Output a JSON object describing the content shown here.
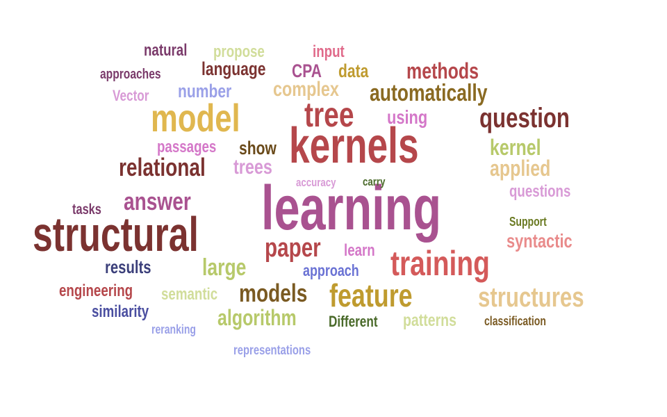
{
  "words": [
    {
      "text": "kernels",
      "color": "#b5474b"
    },
    {
      "text": "learning",
      "color": "#a95290"
    },
    {
      "text": "structural",
      "color": "#7b3230"
    },
    {
      "text": "training",
      "color": "#d45a5a"
    },
    {
      "text": "model",
      "color": "#e0b74f"
    },
    {
      "text": "tree",
      "color": "#b5474b"
    },
    {
      "text": "feature",
      "color": "#bf9b2f"
    },
    {
      "text": "question",
      "color": "#7b3230"
    },
    {
      "text": "structures",
      "color": "#e6c78f"
    },
    {
      "text": "automatically",
      "color": "#8a6a22"
    },
    {
      "text": "relational",
      "color": "#7b3230"
    },
    {
      "text": "answer",
      "color": "#a95290"
    },
    {
      "text": "paper",
      "color": "#b5474b"
    },
    {
      "text": "models",
      "color": "#7a5a22"
    },
    {
      "text": "methods",
      "color": "#b5474b"
    },
    {
      "text": "large",
      "color": "#b7c96a"
    },
    {
      "text": "algorithm",
      "color": "#b7c96a"
    },
    {
      "text": "kernel",
      "color": "#b7c96a"
    },
    {
      "text": "applied",
      "color": "#e6c78f"
    },
    {
      "text": "complex",
      "color": "#e6c78f"
    },
    {
      "text": "trees",
      "color": "#d89ad6"
    },
    {
      "text": "syntactic",
      "color": "#e98b8b"
    },
    {
      "text": "language",
      "color": "#7b3230"
    },
    {
      "text": "show",
      "color": "#6a4a1a"
    },
    {
      "text": "using",
      "color": "#d477c8"
    },
    {
      "text": "data",
      "color": "#bf9b2f"
    },
    {
      "text": "CPA",
      "color": "#a95290"
    },
    {
      "text": "number",
      "color": "#9aa0e8"
    },
    {
      "text": "results",
      "color": "#3b3f7a"
    },
    {
      "text": "passages",
      "color": "#d477c8"
    },
    {
      "text": "questions",
      "color": "#d89ad6"
    },
    {
      "text": "patterns",
      "color": "#d1dd9a"
    },
    {
      "text": "semantic",
      "color": "#d1dd9a"
    },
    {
      "text": "similarity",
      "color": "#4a4ea0"
    },
    {
      "text": "engineering",
      "color": "#b5474b"
    },
    {
      "text": "approach",
      "color": "#6a72d4"
    },
    {
      "text": "learn",
      "color": "#d477c8"
    },
    {
      "text": "input",
      "color": "#e06a8a"
    },
    {
      "text": "natural",
      "color": "#7a3a6a"
    },
    {
      "text": "propose",
      "color": "#d1dd9a"
    },
    {
      "text": "Vector",
      "color": "#d89ad6"
    },
    {
      "text": "approaches",
      "color": "#7a3a6a"
    },
    {
      "text": "tasks",
      "color": "#7a3a6a"
    },
    {
      "text": "Different",
      "color": "#4a6a2a"
    },
    {
      "text": "classification",
      "color": "#7a5a22"
    },
    {
      "text": "accuracy",
      "color": "#d89ad6"
    },
    {
      "text": "carry",
      "color": "#4a6a2a"
    },
    {
      "text": "Support",
      "color": "#6a7a22"
    },
    {
      "text": "reranking",
      "color": "#9aa0e8"
    },
    {
      "text": "representations",
      "color": "#9aa0e8"
    }
  ]
}
